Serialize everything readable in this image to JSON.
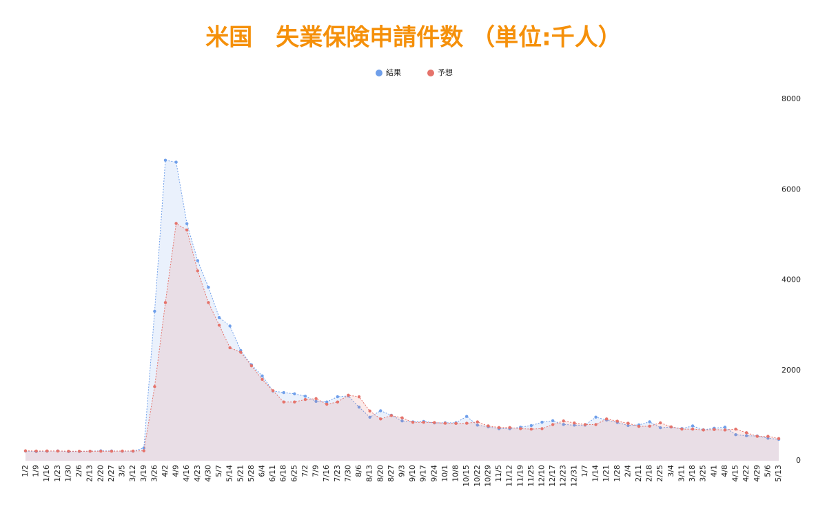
{
  "chart_data": {
    "type": "line",
    "title": "米国　失業保険申請件数 （単位:千人）",
    "categories": [
      "1/2",
      "1/9",
      "1/16",
      "1/23",
      "1/30",
      "2/6",
      "2/13",
      "2/20",
      "2/27",
      "3/5",
      "3/12",
      "3/19",
      "3/26",
      "4/2",
      "4/9",
      "4/16",
      "4/23",
      "4/30",
      "5/7",
      "5/14",
      "5/21",
      "5/28",
      "6/4",
      "6/11",
      "6/18",
      "6/25",
      "7/2",
      "7/9",
      "7/16",
      "7/23",
      "7/30",
      "8/6",
      "8/13",
      "8/20",
      "8/27",
      "9/3",
      "9/10",
      "9/17",
      "9/24",
      "10/1",
      "10/8",
      "10/15",
      "10/22",
      "10/29",
      "11/5",
      "11/12",
      "11/19",
      "11/25",
      "12/10",
      "12/17",
      "12/23",
      "12/31",
      "1/7",
      "1/14",
      "1/21",
      "1/28",
      "2/4",
      "2/11",
      "2/18",
      "2/25",
      "3/4",
      "3/11",
      "3/18",
      "3/25",
      "4/1",
      "4/8",
      "4/15",
      "4/22",
      "4/29",
      "5/6",
      "5/13"
    ],
    "series": [
      {
        "name": "結果",
        "color": "#6f9fea",
        "values": [
          214,
          204,
          211,
          216,
          202,
          205,
          210,
          219,
          216,
          211,
          211,
          282,
          3307,
          6648,
          6606,
          5245,
          4427,
          3839,
          3169,
          2981,
          2438,
          2123,
          1877,
          1542,
          1508,
          1480,
          1427,
          1314,
          1300,
          1416,
          1434,
          1186,
          963,
          1106,
          1006,
          881,
          860,
          870,
          837,
          840,
          840,
          980,
          787,
          751,
          709,
          709,
          742,
          778,
          853,
          885,
          803,
          787,
          787,
          965,
          900,
          847,
          779,
          793,
          861,
          730,
          745,
          712,
          770,
          684,
          719,
          744,
          576,
          553,
          547,
          498,
          473
        ]
      },
      {
        "name": "予想",
        "color": "#e5736b",
        "values": [
          220,
          215,
          216,
          215,
          210,
          210,
          210,
          210,
          210,
          215,
          215,
          220,
          1640,
          3500,
          5250,
          5105,
          4200,
          3500,
          3000,
          2500,
          2400,
          2100,
          1800,
          1550,
          1300,
          1300,
          1355,
          1375,
          1250,
          1300,
          1450,
          1415,
          1100,
          925,
          1000,
          950,
          850,
          850,
          845,
          830,
          825,
          830,
          860,
          770,
          735,
          735,
          710,
          700,
          710,
          800,
          880,
          835,
          800,
          800,
          925,
          875,
          830,
          760,
          765,
          838,
          750,
          700,
          700,
          680,
          690,
          680,
          700,
          620,
          540,
          540,
          490
        ]
      }
    ],
    "ylim": [
      0,
      8000
    ],
    "yticks": [
      0,
      2000,
      4000,
      6000,
      8000
    ],
    "y_axis_side": "right",
    "legend": "top",
    "grid": false,
    "area_fill": true
  }
}
